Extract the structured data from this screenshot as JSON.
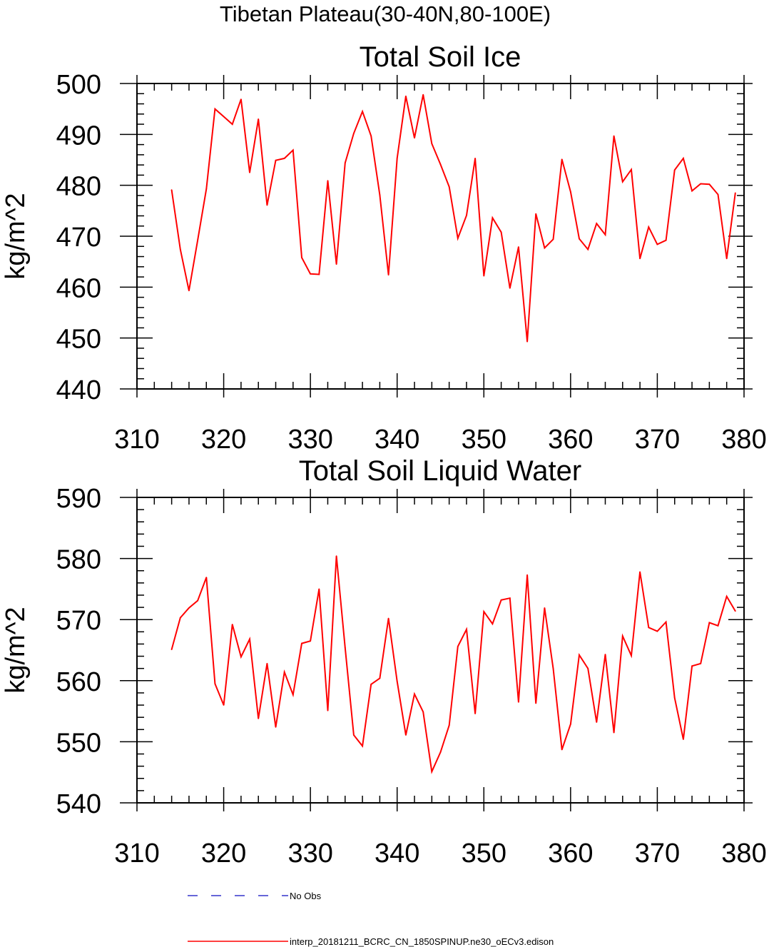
{
  "figure_title": "Tibetan Plateau(30-40N,80-100E)",
  "legend": {
    "obs_label": "No Obs",
    "obs_color": "#3333cc",
    "model_label": "interp_20181211_BCRC_CN_1850SPINUP.ne30_oECv3.edison",
    "model_color": "#ff0000"
  },
  "chart_data": [
    {
      "type": "line",
      "title": "Total Soil Ice",
      "ylabel": "kg/m^2",
      "xlabel": "",
      "xlim": [
        310,
        380
      ],
      "ylim": [
        440,
        500
      ],
      "xticks": [
        310,
        320,
        330,
        340,
        350,
        360,
        370,
        380
      ],
      "yticks": [
        440,
        450,
        460,
        470,
        480,
        490,
        500
      ],
      "series": [
        {
          "color": "#ff0000",
          "x": [
            314,
            315,
            316,
            317,
            318,
            319,
            320,
            321,
            322,
            323,
            324,
            325,
            326,
            327,
            328,
            329,
            330,
            331,
            332,
            333,
            334,
            335,
            336,
            337,
            338,
            339,
            340,
            341,
            342,
            343,
            344,
            345,
            346,
            347,
            348,
            349,
            350,
            351,
            352,
            353,
            354,
            355,
            356,
            357,
            358,
            359,
            360,
            361,
            362,
            363,
            364,
            365,
            366,
            367,
            368,
            369,
            370,
            371,
            372,
            373,
            374,
            375,
            376,
            377,
            378,
            379
          ],
          "values": [
            479.1,
            467.4,
            459.3,
            469.2,
            479.3,
            495.0,
            493.5,
            492.0,
            496.9,
            482.5,
            493.0,
            476.1,
            484.9,
            485.3,
            486.9,
            465.8,
            462.6,
            462.5,
            480.9,
            464.5,
            484.4,
            490.2,
            494.5,
            489.7,
            478.1,
            462.4,
            485.3,
            497.5,
            489.3,
            497.8,
            488.2,
            484.1,
            479.7,
            469.6,
            474.1,
            485.3,
            462.2,
            473.6,
            470.8,
            459.8,
            467.9,
            449.3,
            474.4,
            467.7,
            469.4,
            485.1,
            478.7,
            469.5,
            467.4,
            472.5,
            470.3,
            489.7,
            480.7,
            483.1,
            465.6,
            471.8,
            468.4,
            469.2,
            483.0,
            485.3,
            478.9,
            480.3,
            480.2,
            478.2,
            465.6,
            478.5
          ]
        }
      ]
    },
    {
      "type": "line",
      "title": "Total Soil Liquid Water",
      "ylabel": "kg/m^2",
      "xlabel": "",
      "xlim": [
        310,
        380
      ],
      "ylim": [
        540,
        590
      ],
      "xticks": [
        310,
        320,
        330,
        340,
        350,
        360,
        370,
        380
      ],
      "yticks": [
        540,
        550,
        560,
        570,
        580,
        590
      ],
      "series": [
        {
          "color": "#ff0000",
          "x": [
            314,
            315,
            316,
            317,
            318,
            319,
            320,
            321,
            322,
            323,
            324,
            325,
            326,
            327,
            328,
            329,
            330,
            331,
            332,
            333,
            334,
            335,
            336,
            337,
            338,
            339,
            340,
            341,
            342,
            343,
            344,
            345,
            346,
            347,
            348,
            349,
            350,
            351,
            352,
            353,
            354,
            355,
            356,
            357,
            358,
            359,
            360,
            361,
            362,
            363,
            364,
            365,
            366,
            367,
            368,
            369,
            370,
            371,
            372,
            373,
            374,
            375,
            376,
            377,
            378,
            379
          ],
          "values": [
            565.1,
            570.3,
            571.9,
            573.1,
            576.9,
            559.5,
            556.0,
            569.2,
            563.9,
            566.8,
            553.8,
            562.8,
            552.4,
            561.4,
            557.7,
            566.1,
            566.5,
            575.0,
            555.1,
            580.4,
            565.4,
            551.1,
            549.3,
            559.4,
            560.4,
            570.2,
            559.9,
            551.1,
            557.8,
            554.9,
            545.1,
            548.3,
            552.7,
            565.6,
            568.4,
            554.6,
            571.3,
            569.3,
            573.2,
            573.5,
            556.5,
            577.3,
            556.3,
            571.9,
            562.0,
            548.7,
            552.9,
            564.2,
            562.0,
            553.2,
            564.3,
            551.5,
            567.3,
            564.1,
            577.8,
            568.7,
            568.1,
            569.6,
            557.2,
            550.4,
            562.4,
            562.8,
            569.5,
            569.0,
            573.8,
            571.4
          ]
        }
      ]
    }
  ]
}
